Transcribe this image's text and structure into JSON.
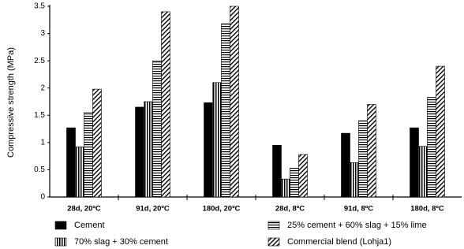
{
  "chart_data": {
    "type": "bar",
    "y_label": "Compressive strength (MPa)",
    "categories": [
      "28d, 20ºC",
      "91d, 20ºC",
      "180d, 20ºC",
      "28d, 8ºC",
      "91d, 8ºC",
      "180d, 8ºC"
    ],
    "series": [
      {
        "name": "Cement",
        "color": "#000000",
        "pattern": "solid",
        "values": [
          1.27,
          1.65,
          1.73,
          0.95,
          1.17,
          1.27
        ]
      },
      {
        "name": "70% slag + 30% cement",
        "color": "#000000",
        "pattern": "vertical",
        "values": [
          0.92,
          1.75,
          2.1,
          0.33,
          0.63,
          0.93
        ]
      },
      {
        "name": "25% cement + 60% slag + 15% lime",
        "color": "#000000",
        "pattern": "horizontal",
        "values": [
          1.55,
          2.5,
          3.18,
          0.53,
          1.4,
          1.83
        ]
      },
      {
        "name": "Commercial blend (Lohja1)",
        "color": "#000000",
        "pattern": "diagonal",
        "values": [
          1.98,
          3.4,
          3.5,
          0.78,
          1.7,
          2.4
        ]
      }
    ],
    "ylim": [
      0,
      3.5
    ],
    "yticks": [
      0,
      0.5,
      1,
      1.5,
      2,
      2.5,
      3,
      3.5
    ],
    "grid": false,
    "legend": "bottom"
  }
}
